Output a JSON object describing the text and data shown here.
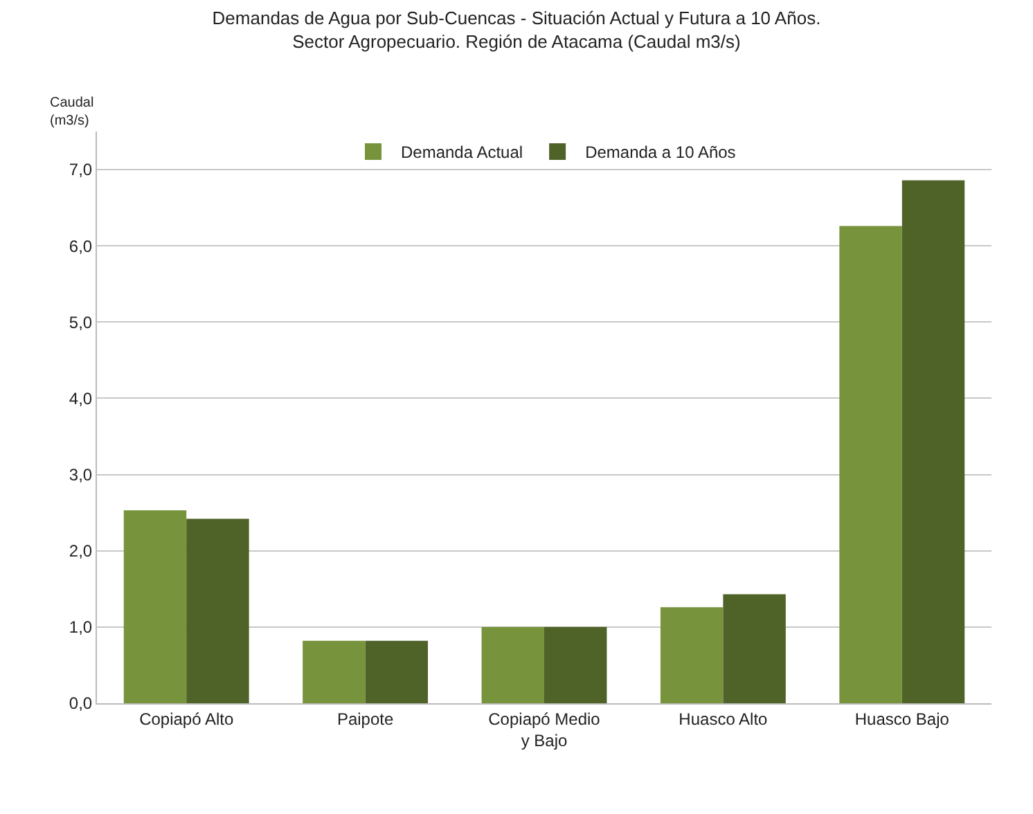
{
  "chart_data": {
    "type": "bar",
    "title": "Demandas de Agua por Sub-Cuencas - Situación Actual y Futura a 10 Años.",
    "subtitle": "Sector Agropecuario. Región de Atacama (Caudal m3/s)",
    "ylabel": "Caudal (m3/s)",
    "categories": [
      "Copiapó Alto",
      "Paipote",
      "Copiapó Medio y Bajo",
      "Huasco Alto",
      "Huasco Bajo"
    ],
    "series": [
      {
        "name": "Demanda Actual",
        "color": "#77933c",
        "values": [
          2.53,
          0.82,
          1.0,
          1.26,
          6.26
        ]
      },
      {
        "name": "Demanda a 10 Años",
        "color": "#4f6228",
        "values": [
          2.42,
          0.82,
          1.0,
          1.43,
          6.86
        ]
      }
    ],
    "ylim": [
      0,
      7.5
    ],
    "yticks": [
      {
        "value": 0,
        "label": "0,0"
      },
      {
        "value": 1,
        "label": "1,0"
      },
      {
        "value": 2,
        "label": "2,0"
      },
      {
        "value": 3,
        "label": "3,0"
      },
      {
        "value": 4,
        "label": "4,0"
      },
      {
        "value": 5,
        "label": "5,0"
      },
      {
        "value": 6,
        "label": "6,0"
      },
      {
        "value": 7,
        "label": "7,0"
      }
    ],
    "grid": "y",
    "legend": "top"
  }
}
